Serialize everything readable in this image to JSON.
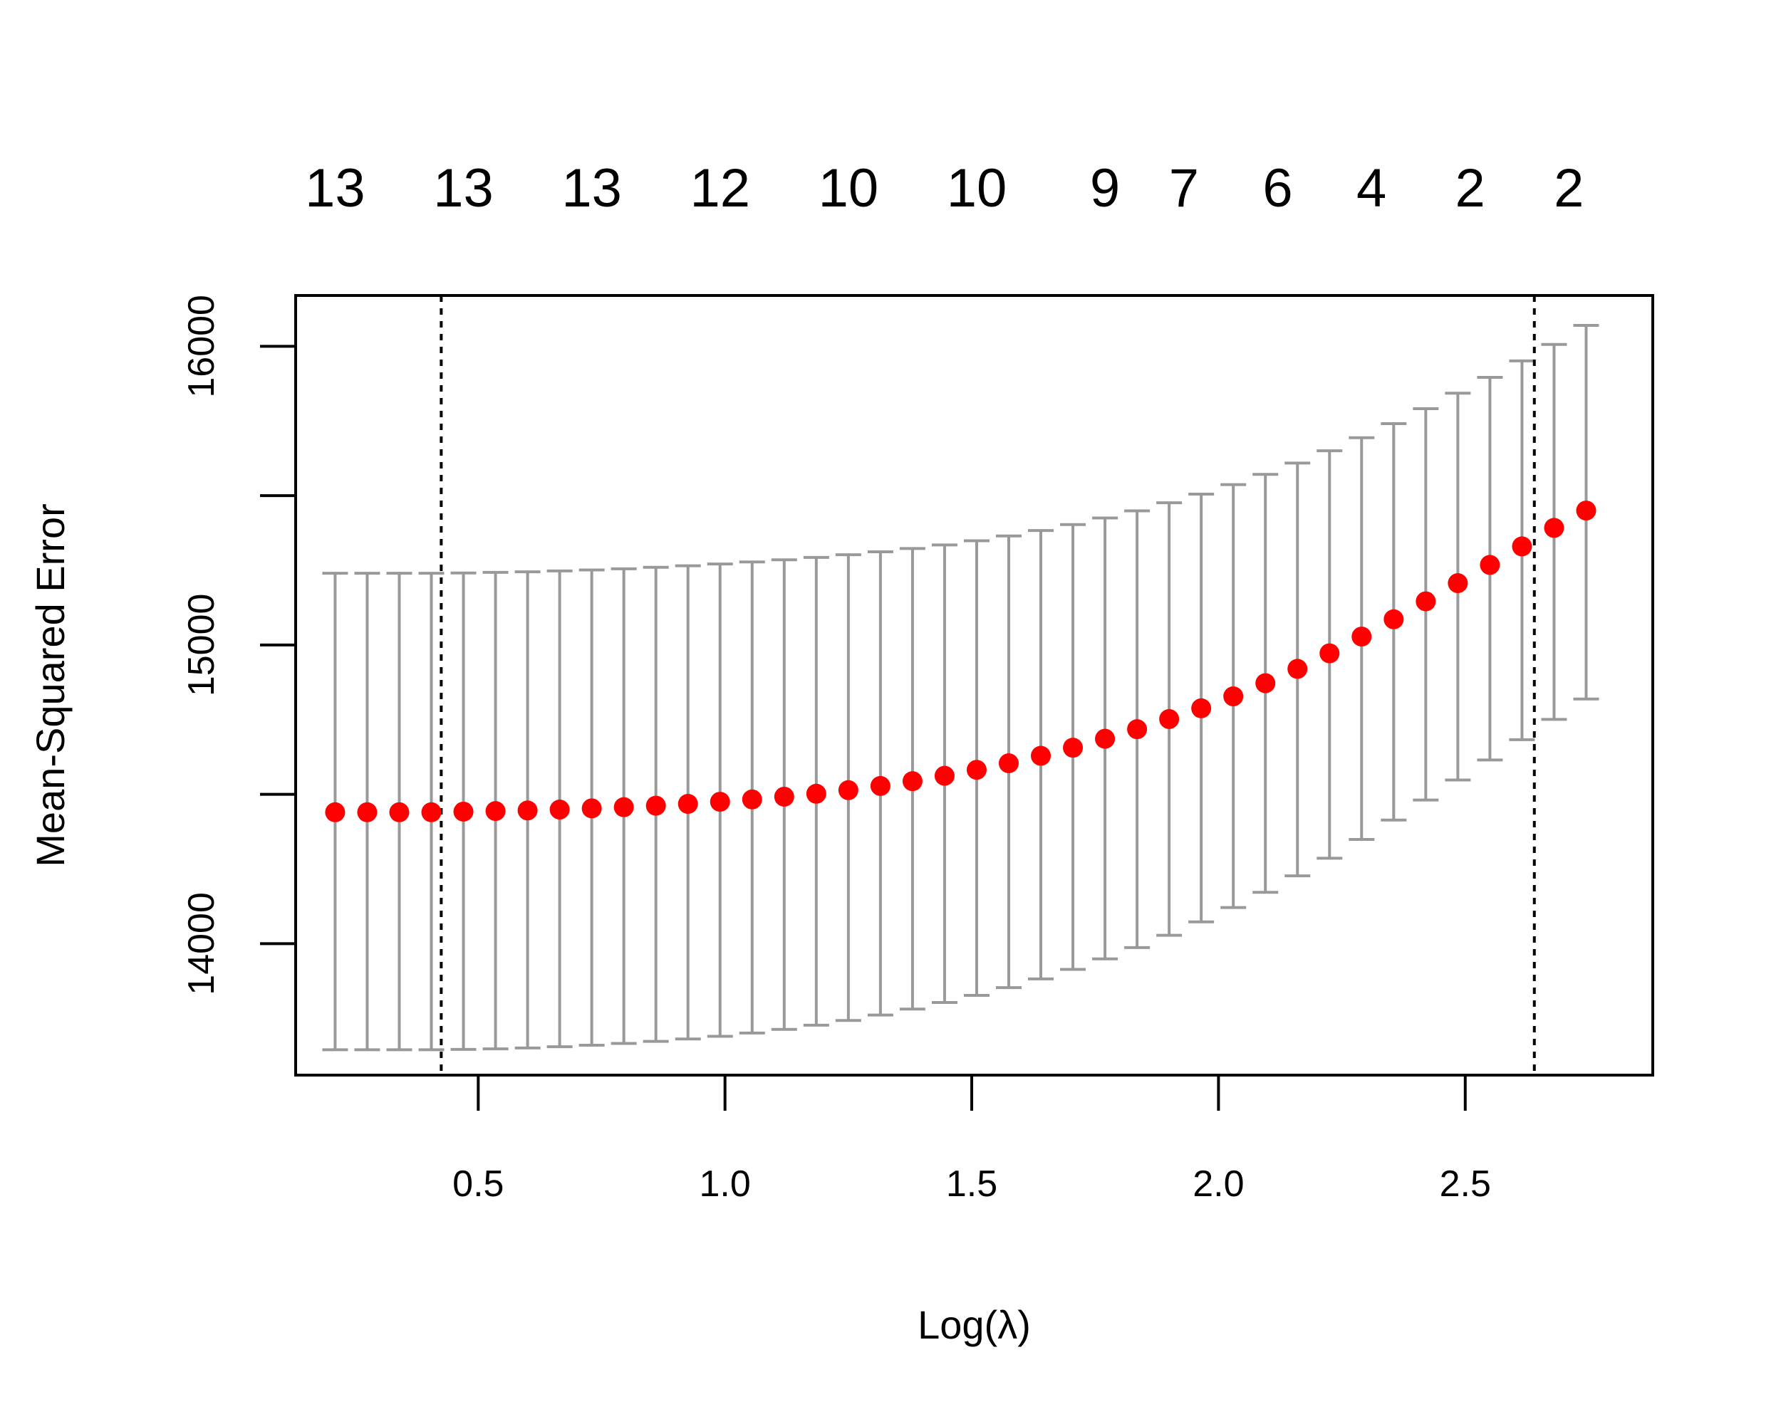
{
  "chart_data": {
    "type": "scatter",
    "xlabel": "Log(λ)",
    "ylabel": "Mean-Squared Error",
    "xlim": [
      0.13,
      2.88
    ],
    "ylim": [
      13560,
      16170
    ],
    "x_ticks": [
      0.5,
      1.0,
      1.5,
      2.0,
      2.5
    ],
    "x_tick_labels": [
      "0.5",
      "1.0",
      "1.5",
      "2.0",
      "2.5"
    ],
    "y_ticks": [
      14000,
      15000,
      16000
    ],
    "y_tick_labels": [
      "14000",
      "15000",
      "16000"
    ],
    "y_minor_ticks": [
      14500,
      15500
    ],
    "top_axis": {
      "positions": [
        0.21,
        0.47,
        0.73,
        0.99,
        1.25,
        1.51,
        1.77,
        1.93,
        2.12,
        2.31,
        2.51,
        2.71
      ],
      "labels": [
        "13",
        "13",
        "13",
        "12",
        "10",
        "10",
        "9",
        "7",
        "6",
        "4",
        "2",
        "2"
      ]
    },
    "vlines": [
      0.425,
      2.64
    ],
    "grid": false,
    "legend": "none",
    "colors": {
      "points": "#ff0000",
      "error_bars": "#999999",
      "vlines": "#000000",
      "frame": "#000000"
    },
    "series": [
      {
        "x": [
          0.21,
          0.275,
          0.34,
          0.405,
          0.47,
          0.535,
          0.6,
          0.665,
          0.73,
          0.795,
          0.86,
          0.925,
          0.99,
          1.055,
          1.12,
          1.185,
          1.25,
          1.315,
          1.38,
          1.445,
          1.51,
          1.575,
          1.64,
          1.705,
          1.77,
          1.835,
          1.9,
          1.965,
          2.03,
          2.095,
          2.16,
          2.225,
          2.29,
          2.355,
          2.42,
          2.485,
          2.55,
          2.615,
          2.68,
          2.745
        ],
        "y": [
          14440,
          14440,
          14440,
          14440,
          14442,
          14444,
          14446,
          14449,
          14453,
          14457,
          14462,
          14468,
          14475,
          14483,
          14492,
          14502,
          14514,
          14528,
          14544,
          14562,
          14582,
          14604,
          14629,
          14656,
          14686,
          14718,
          14752,
          14788,
          14828,
          14872,
          14920,
          14972,
          15028,
          15086,
          15146,
          15207,
          15268,
          15330,
          15392,
          15450
        ],
        "y_upper": [
          15240,
          15240,
          15240,
          15240,
          15241,
          15243,
          15245,
          15248,
          15251,
          15255,
          15260,
          15265,
          15271,
          15278,
          15285,
          15293,
          15302,
          15312,
          15323,
          15335,
          15349,
          15365,
          15383,
          15403,
          15425,
          15449,
          15476,
          15505,
          15537,
          15571,
          15609,
          15650,
          15694,
          15741,
          15791,
          15843,
          15896,
          15951,
          16006,
          16070
        ],
        "y_lower": [
          13645,
          13645,
          13645,
          13645,
          13646,
          13648,
          13651,
          13655,
          13660,
          13666,
          13673,
          13681,
          13690,
          13701,
          13713,
          13727,
          13743,
          13761,
          13781,
          13803,
          13827,
          13853,
          13882,
          13914,
          13949,
          13987,
          14028,
          14073,
          14121,
          14172,
          14227,
          14286,
          14349,
          14414,
          14481,
          14548,
          14615,
          14683,
          14751,
          14819
        ]
      }
    ]
  }
}
